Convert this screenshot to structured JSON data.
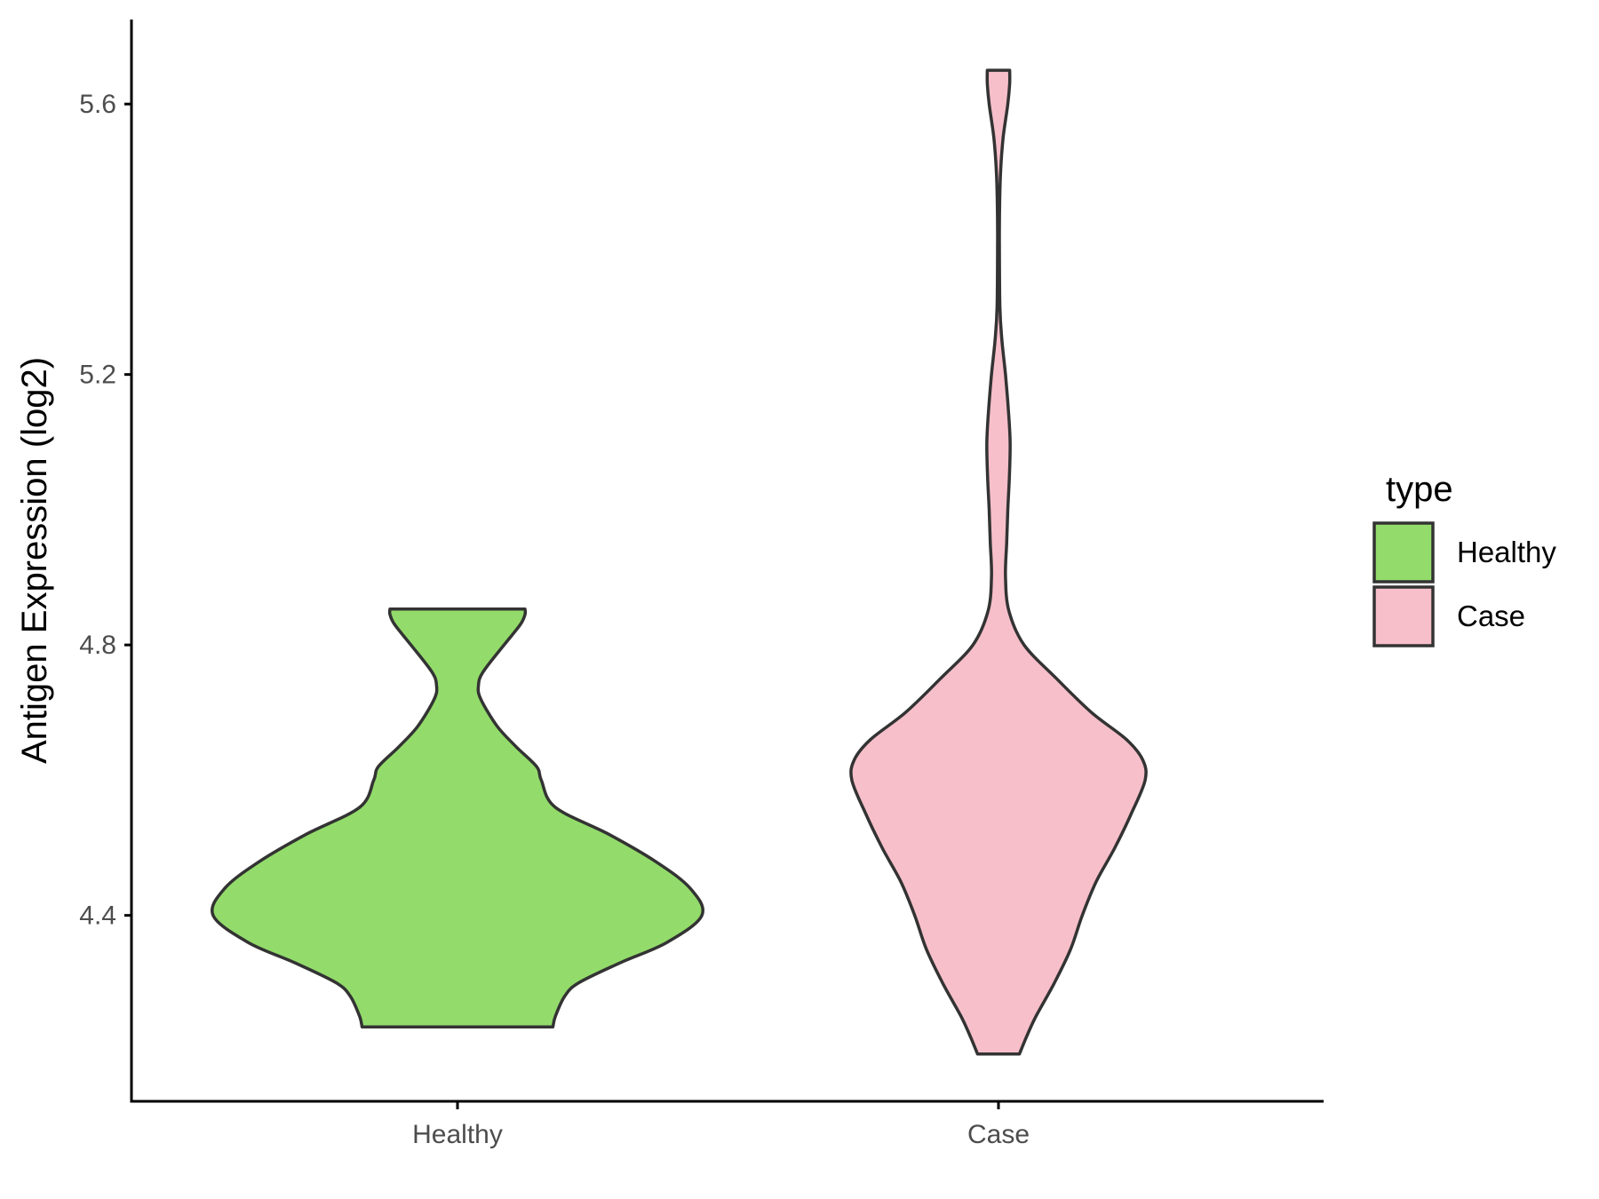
{
  "chart_data": {
    "type": "violin",
    "ylabel": "Antigen Expression (log2)",
    "xlabel": "",
    "ylim": [
      4.125,
      5.725
    ],
    "yticks": [
      4.4,
      4.8,
      5.2,
      5.6
    ],
    "ytick_labels": [
      "4.4",
      "4.8",
      "5.2",
      "5.6"
    ],
    "categories": [
      "Healthy",
      "Case"
    ],
    "grid": false,
    "legend": {
      "title": "type",
      "position": "right",
      "entries": [
        "Healthy",
        "Case"
      ]
    },
    "series": [
      {
        "name": "Healthy",
        "color": "#93dc6b",
        "min": 4.235,
        "max": 4.853,
        "profile": [
          [
            4.235,
            0.41
          ],
          [
            4.25,
            0.42
          ],
          [
            4.28,
            0.46
          ],
          [
            4.3,
            0.52
          ],
          [
            4.33,
            0.7
          ],
          [
            4.36,
            0.9
          ],
          [
            4.4,
            1.05
          ],
          [
            4.44,
            1.0
          ],
          [
            4.48,
            0.85
          ],
          [
            4.52,
            0.65
          ],
          [
            4.56,
            0.42
          ],
          [
            4.6,
            0.36
          ],
          [
            4.62,
            0.34
          ],
          [
            4.65,
            0.25
          ],
          [
            4.68,
            0.17
          ],
          [
            4.72,
            0.1
          ],
          [
            4.74,
            0.09
          ],
          [
            4.76,
            0.11
          ],
          [
            4.8,
            0.2
          ],
          [
            4.83,
            0.27
          ],
          [
            4.845,
            0.29
          ],
          [
            4.853,
            0.29
          ]
        ]
      },
      {
        "name": "Case",
        "color": "#f7bfca",
        "min": 4.195,
        "max": 5.65,
        "profile": [
          [
            4.195,
            0.09
          ],
          [
            4.22,
            0.12
          ],
          [
            4.25,
            0.16
          ],
          [
            4.3,
            0.24
          ],
          [
            4.35,
            0.31
          ],
          [
            4.4,
            0.36
          ],
          [
            4.45,
            0.42
          ],
          [
            4.5,
            0.5
          ],
          [
            4.55,
            0.57
          ],
          [
            4.6,
            0.63
          ],
          [
            4.63,
            0.62
          ],
          [
            4.66,
            0.55
          ],
          [
            4.7,
            0.4
          ],
          [
            4.75,
            0.25
          ],
          [
            4.8,
            0.11
          ],
          [
            4.85,
            0.045
          ],
          [
            4.9,
            0.03
          ],
          [
            4.95,
            0.035
          ],
          [
            5.0,
            0.04
          ],
          [
            5.05,
            0.047
          ],
          [
            5.1,
            0.05
          ],
          [
            5.15,
            0.042
          ],
          [
            5.2,
            0.03
          ],
          [
            5.25,
            0.015
          ],
          [
            5.3,
            0.006
          ],
          [
            5.4,
            0.004
          ],
          [
            5.45,
            0.005
          ],
          [
            5.5,
            0.009
          ],
          [
            5.55,
            0.02
          ],
          [
            5.6,
            0.04
          ],
          [
            5.63,
            0.048
          ],
          [
            5.65,
            0.048
          ]
        ]
      }
    ]
  }
}
